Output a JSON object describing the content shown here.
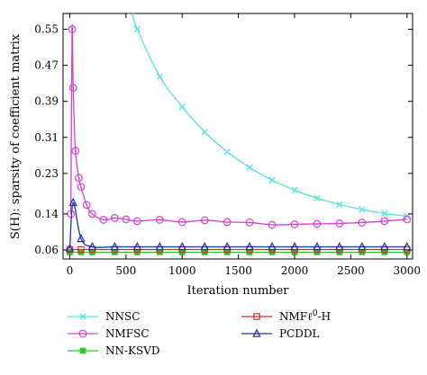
{
  "chart_data": {
    "type": "line",
    "title": "",
    "xlabel": "Iteration number",
    "ylabel": "S(H): sparsity of coefficient matrix",
    "xlim": [
      -60,
      3050
    ],
    "ylim": [
      0.04,
      0.585
    ],
    "xticks": [
      0,
      500,
      1000,
      1500,
      2000,
      2500,
      3000
    ],
    "yticks": [
      0.06,
      0.14,
      0.23,
      0.31,
      0.39,
      0.47,
      0.55
    ],
    "ytick_labels": [
      "0.06",
      "",
      "",
      "",
      "",
      "",
      "0.55"
    ],
    "ytick_labels_visible": [
      "0.06",
      "0.14",
      "0.23",
      "0.31",
      "0.39",
      "0.47",
      "0.55"
    ],
    "grid": false,
    "legend_position": "bottom",
    "series": [
      {
        "name": "NNSC",
        "color": "#4fe3e3",
        "marker": "x",
        "x": [
          550,
          600,
          800,
          1000,
          1200,
          1400,
          1600,
          1800,
          2000,
          2200,
          2400,
          2600,
          2800,
          3000
        ],
        "y": [
          0.59,
          0.55,
          0.445,
          0.378,
          0.322,
          0.278,
          0.243,
          0.215,
          0.193,
          0.175,
          0.161,
          0.15,
          0.141,
          0.135
        ]
      },
      {
        "name": "NMFSC",
        "color": "#d63fd6",
        "marker": "o",
        "x": [
          10,
          20,
          30,
          50,
          80,
          100,
          150,
          200,
          300,
          400,
          500,
          600,
          800,
          1000,
          1200,
          1400,
          1600,
          1800,
          2000,
          2200,
          2400,
          2600,
          2800,
          3000
        ],
        "y": [
          0.14,
          0.55,
          0.42,
          0.28,
          0.22,
          0.2,
          0.16,
          0.14,
          0.127,
          0.131,
          0.128,
          0.124,
          0.127,
          0.122,
          0.126,
          0.122,
          0.121,
          0.116,
          0.117,
          0.118,
          0.119,
          0.121,
          0.124,
          0.128
        ]
      },
      {
        "name": "NN-KSVD",
        "color": "#22cc22",
        "marker": "s",
        "x": [
          0,
          100,
          200,
          400,
          600,
          800,
          1000,
          1200,
          1400,
          1600,
          1800,
          2000,
          2200,
          2400,
          2600,
          2800,
          3000
        ],
        "y": [
          0.055,
          0.055,
          0.055,
          0.055,
          0.055,
          0.055,
          0.055,
          0.055,
          0.055,
          0.055,
          0.055,
          0.055,
          0.055,
          0.055,
          0.055,
          0.055,
          0.055
        ]
      },
      {
        "name": "NMFℓ0-H",
        "color": "#d03030",
        "marker": "square-open",
        "x": [
          0,
          100,
          200,
          400,
          600,
          800,
          1000,
          1200,
          1400,
          1600,
          1800,
          2000,
          2200,
          2400,
          2600,
          2800,
          3000
        ],
        "y": [
          0.061,
          0.061,
          0.061,
          0.061,
          0.061,
          0.061,
          0.061,
          0.061,
          0.061,
          0.061,
          0.061,
          0.061,
          0.061,
          0.061,
          0.061,
          0.061,
          0.061
        ]
      },
      {
        "name": "PCDDL",
        "color": "#2030a0",
        "marker": "triangle-open",
        "x": [
          0,
          30,
          100,
          200,
          400,
          600,
          800,
          1000,
          1200,
          1400,
          1600,
          1800,
          2000,
          2200,
          2400,
          2600,
          2800,
          3000
        ],
        "y": [
          0.063,
          0.165,
          0.085,
          0.067,
          0.067,
          0.067,
          0.067,
          0.067,
          0.067,
          0.067,
          0.067,
          0.067,
          0.067,
          0.067,
          0.067,
          0.067,
          0.067,
          0.067
        ]
      }
    ]
  },
  "legend": {
    "items": [
      {
        "label": "NNSC",
        "label_main": "NNSC",
        "label_sup": "",
        "label_tail": ""
      },
      {
        "label": "NMFℓ0-H",
        "label_main": "NMFℓ",
        "label_sup": "0",
        "label_tail": "-H"
      },
      {
        "label": "NMFSC",
        "label_main": "NMFSC",
        "label_sup": "",
        "label_tail": ""
      },
      {
        "label": "PCDDL",
        "label_main": "PCDDL",
        "label_sup": "",
        "label_tail": ""
      },
      {
        "label": "NN-KSVD",
        "label_main": "NN-KSVD",
        "label_sup": "",
        "label_tail": ""
      }
    ]
  }
}
